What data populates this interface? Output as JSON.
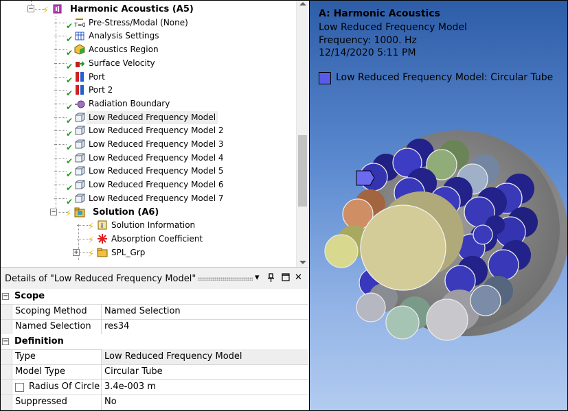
{
  "tree": {
    "items": [
      {
        "label": "Harmonic Acoustics (A5)",
        "icon": "harmonic-acoustics-icon",
        "level": 0,
        "bold": true,
        "expander": "−",
        "status": "bolt"
      },
      {
        "label": "Pre-Stress/Modal (None)",
        "icon": "prestress-icon",
        "level": 1,
        "status": "check"
      },
      {
        "label": "Analysis Settings",
        "icon": "analysis-settings-icon",
        "level": 1,
        "status": "check"
      },
      {
        "label": "Acoustics Region",
        "icon": "acoustics-region-icon",
        "level": 1,
        "status": "check"
      },
      {
        "label": "Surface Velocity",
        "icon": "surface-velocity-icon",
        "level": 1,
        "status": "check"
      },
      {
        "label": "Port",
        "icon": "port-icon",
        "level": 1,
        "status": "check"
      },
      {
        "label": "Port 2",
        "icon": "port-icon",
        "level": 1,
        "status": "check"
      },
      {
        "label": "Radiation Boundary",
        "icon": "radiation-boundary-icon",
        "level": 1,
        "status": "check"
      },
      {
        "label": "Low Reduced Frequency Model",
        "icon": "lrf-model-icon",
        "level": 1,
        "status": "check",
        "selected": true
      },
      {
        "label": "Low Reduced Frequency Model 2",
        "icon": "lrf-model-icon",
        "level": 1,
        "status": "check"
      },
      {
        "label": "Low Reduced Frequency Model 3",
        "icon": "lrf-model-icon",
        "level": 1,
        "status": "check"
      },
      {
        "label": "Low Reduced Frequency Model 4",
        "icon": "lrf-model-icon",
        "level": 1,
        "status": "check"
      },
      {
        "label": "Low Reduced Frequency Model 5",
        "icon": "lrf-model-icon",
        "level": 1,
        "status": "check"
      },
      {
        "label": "Low Reduced Frequency Model 6",
        "icon": "lrf-model-icon",
        "level": 1,
        "status": "check"
      },
      {
        "label": "Low Reduced Frequency Model 7",
        "icon": "lrf-model-icon",
        "level": 1,
        "status": "check"
      },
      {
        "label": "Solution (A6)",
        "icon": "solution-icon",
        "level": 1,
        "bold": true,
        "expander": "−",
        "status": "bolt"
      },
      {
        "label": "Solution Information",
        "icon": "solution-information-icon",
        "level": 2,
        "status": "bolt"
      },
      {
        "label": "Absorption Coefficient",
        "icon": "absorption-coefficient-icon",
        "level": 2,
        "status": "bolt"
      },
      {
        "label": "SPL_Grp",
        "icon": "folder-icon",
        "level": 2,
        "expander": "+",
        "status": "bolt"
      }
    ]
  },
  "details": {
    "title": "Details of \"Low Reduced Frequency Model\"",
    "pin": "▾",
    "dock": "📌",
    "close": "✕",
    "sections": [
      {
        "label": "Scope",
        "rows": [
          {
            "key": "Scoping Method",
            "value": "Named Selection"
          },
          {
            "key": "Named Selection",
            "value": "res34"
          }
        ]
      },
      {
        "label": "Definition",
        "rows": [
          {
            "key": "Type",
            "value": "Low Reduced Frequency Model",
            "readonly": true
          },
          {
            "key": "Model Type",
            "value": "Circular Tube"
          },
          {
            "key": "Radius Of Circle",
            "value": "3.4e-003 m",
            "checkbox": true
          },
          {
            "key": "Suppressed",
            "value": "No"
          }
        ]
      }
    ]
  },
  "graphics": {
    "title": "A: Harmonic Acoustics",
    "lines": [
      "Low Reduced Frequency Model",
      "Frequency: 1000. Hz",
      "12/14/2020 5:11 PM"
    ],
    "legend_label": "Low Reduced Frequency Model: Circular Tube",
    "legend_color": "#5a5ae8",
    "background_top": "#2e5da8",
    "background_bottom": "#b3ccf0"
  }
}
